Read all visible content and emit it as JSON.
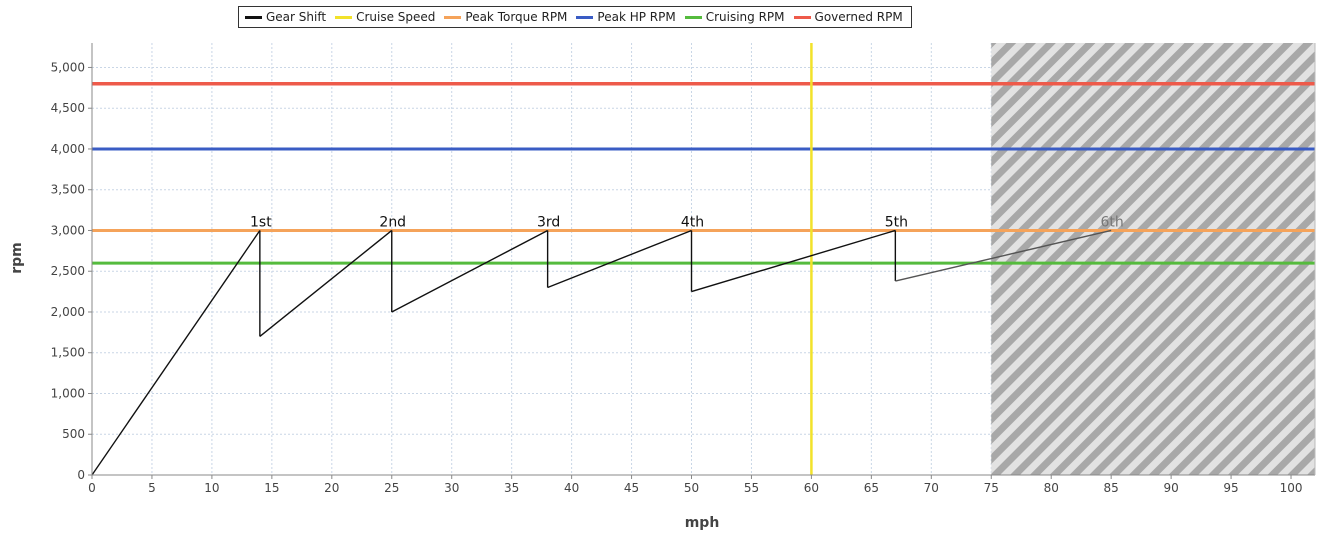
{
  "chart_data": {
    "type": "line",
    "xlabel": "mph",
    "ylabel": "rpm",
    "xlim": [
      0,
      102
    ],
    "ylim": [
      0,
      5300
    ],
    "x_ticks": [
      0,
      5,
      10,
      15,
      20,
      25,
      30,
      35,
      40,
      45,
      50,
      55,
      60,
      65,
      70,
      75,
      80,
      85,
      90,
      95,
      100
    ],
    "y_ticks": [
      0,
      500,
      1000,
      1500,
      2000,
      2500,
      3000,
      3500,
      4000,
      4500,
      5000
    ],
    "y_tick_labels": [
      "0",
      "500",
      "1,000",
      "1,500",
      "2,000",
      "2,500",
      "3,000",
      "3,500",
      "4,000",
      "4,500",
      "5,000"
    ],
    "legend_position": "top-center",
    "grid": true,
    "colors": {
      "gear_shift": "#111111",
      "cruise_speed": "#f2e22a",
      "peak_torque": "#f5a35a",
      "peak_hp": "#3a5cc4",
      "cruising_rpm": "#55bb3d",
      "governed_rpm": "#ee5a4a",
      "hatch": "#a8a8a8"
    },
    "legend": [
      {
        "label": "Gear Shift",
        "color": "#111111"
      },
      {
        "label": "Cruise Speed",
        "color": "#f2e22a"
      },
      {
        "label": "Peak Torque RPM",
        "color": "#f5a35a"
      },
      {
        "label": "Peak HP RPM",
        "color": "#3a5cc4"
      },
      {
        "label": "Cruising RPM",
        "color": "#55bb3d"
      },
      {
        "label": "Governed RPM",
        "color": "#ee5a4a"
      }
    ],
    "gear_shift": {
      "x": [
        0,
        14,
        14,
        25,
        25,
        38,
        38,
        50,
        50,
        67,
        67,
        85
      ],
      "y": [
        0,
        3000,
        1700,
        3000,
        2000,
        3000,
        2300,
        3000,
        2250,
        3000,
        2380,
        3000
      ]
    },
    "gear_labels": [
      {
        "text": "1st",
        "x": 14,
        "y": 3000
      },
      {
        "text": "2nd",
        "x": 25,
        "y": 3000
      },
      {
        "text": "3rd",
        "x": 38,
        "y": 3000
      },
      {
        "text": "4th",
        "x": 50,
        "y": 3000
      },
      {
        "text": "5th",
        "x": 67,
        "y": 3000
      },
      {
        "text": "6th",
        "x": 85,
        "y": 3000
      }
    ],
    "cruise_speed": 60,
    "peak_torque_rpm": 3000,
    "peak_hp_rpm": 4000,
    "cruising_rpm": 2600,
    "governed_rpm": 4800,
    "hatched_region_x": [
      75,
      102
    ]
  }
}
